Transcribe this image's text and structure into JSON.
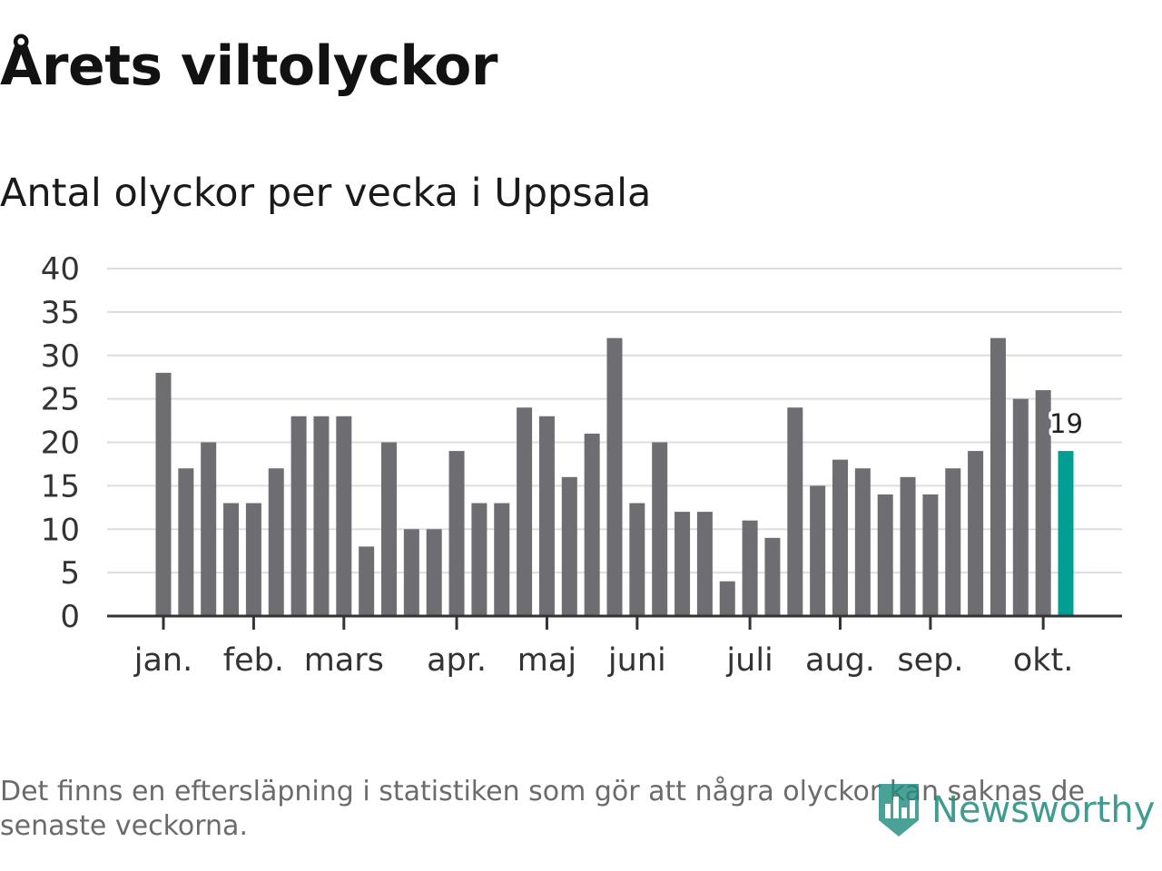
{
  "title": "Årets viltolyckor",
  "subtitle": "Antal olyckor per vecka i Uppsala",
  "chart_data": {
    "type": "bar",
    "title": "Årets viltolyckor",
    "subtitle": "Antal olyckor per vecka i Uppsala",
    "xlabel": "",
    "ylabel": "",
    "ylim": [
      0,
      40
    ],
    "yticks": [
      0,
      5,
      10,
      15,
      20,
      25,
      30,
      35,
      40
    ],
    "grid": true,
    "values": [
      28,
      17,
      20,
      13,
      13,
      17,
      23,
      23,
      23,
      8,
      20,
      10,
      10,
      19,
      13,
      13,
      24,
      23,
      16,
      21,
      32,
      13,
      20,
      12,
      12,
      4,
      11,
      9,
      24,
      15,
      18,
      17,
      14,
      16,
      14,
      17,
      19,
      32,
      25,
      26,
      19
    ],
    "month_labels": [
      {
        "label": "jan.",
        "bar_index": 0
      },
      {
        "label": "feb.",
        "bar_index": 4
      },
      {
        "label": "mars",
        "bar_index": 8
      },
      {
        "label": "apr.",
        "bar_index": 13
      },
      {
        "label": "maj",
        "bar_index": 17
      },
      {
        "label": "juni",
        "bar_index": 21
      },
      {
        "label": "juli",
        "bar_index": 26
      },
      {
        "label": "aug.",
        "bar_index": 30
      },
      {
        "label": "sep.",
        "bar_index": 34
      },
      {
        "label": "okt.",
        "bar_index": 39
      }
    ],
    "highlight": {
      "bar_index": 40,
      "label": "19"
    },
    "colors": {
      "bar": "#6e6d72",
      "highlight": "#009e94",
      "grid": "#dddddd",
      "axis": "#333333"
    }
  },
  "footnote": "Det finns en eftersläpning i statistiken som gör att några olyckor kan saknas de senaste veckorna.",
  "brand": {
    "name": "Newsworthy",
    "color": "#1f8a7e"
  }
}
